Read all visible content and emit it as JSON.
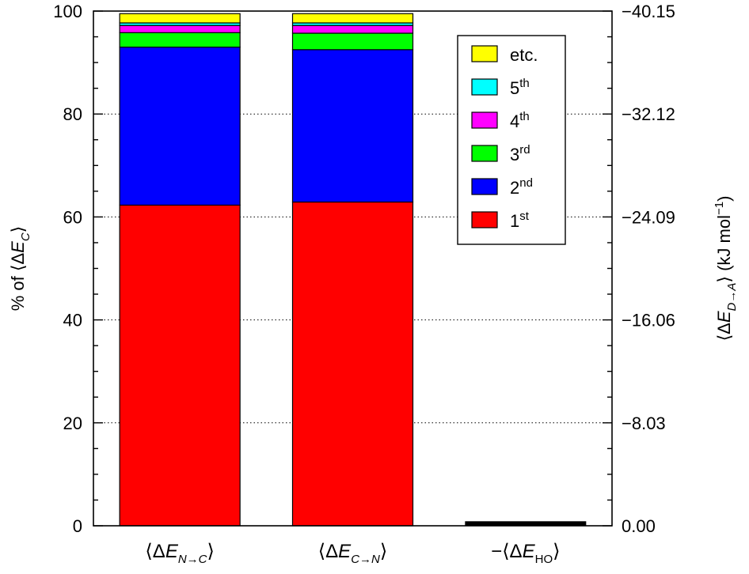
{
  "chart_data": {
    "type": "stacked-bar",
    "title": "",
    "categories": [
      "⟨ΔE_{N→C}⟩",
      "⟨ΔE_{C→N}⟩",
      "−⟨ΔE_{HO}⟩"
    ],
    "category_labels": [
      {
        "pre": "⟨Δ",
        "main": "E",
        "sub": "N→C",
        "post": "⟩"
      },
      {
        "pre": "⟨Δ",
        "main": "E",
        "sub": "C→N",
        "post": "⟩"
      },
      {
        "pre": "−⟨Δ",
        "main": "E",
        "sub": "HO",
        "post": "⟩"
      }
    ],
    "series": [
      {
        "name": "1st",
        "label_base": "1",
        "label_sup": "st",
        "color": "#ff0000",
        "values": [
          62.3,
          62.9,
          0
        ]
      },
      {
        "name": "2nd",
        "label_base": "2",
        "label_sup": "nd",
        "color": "#0000ff",
        "values": [
          30.7,
          29.6,
          0
        ]
      },
      {
        "name": "3rd",
        "label_base": "3",
        "label_sup": "rd",
        "color": "#00ff00",
        "values": [
          2.8,
          3.2,
          0
        ]
      },
      {
        "name": "4th",
        "label_base": "4",
        "label_sup": "th",
        "color": "#ff00ff",
        "values": [
          1.4,
          1.5,
          0
        ]
      },
      {
        "name": "5th",
        "label_base": "5",
        "label_sup": "th",
        "color": "#00ffff",
        "values": [
          0.5,
          0.5,
          0
        ]
      },
      {
        "name": "etc.",
        "label_base": "etc.",
        "label_sup": "",
        "color": "#ffff00",
        "values": [
          1.8,
          1.8,
          0
        ]
      }
    ],
    "extra_bars": [
      {
        "category_index": 2,
        "value": 0.8,
        "color": "#000000"
      }
    ],
    "y_left": {
      "label_pre": "% of ⟨Δ",
      "label_main": "E",
      "label_sub": "C",
      "label_post": "⟩",
      "ylim": [
        0,
        100
      ],
      "ticks": [
        0,
        20,
        40,
        60,
        80,
        100
      ],
      "tick_labels": [
        "0",
        "20",
        "40",
        "60",
        "80",
        "100"
      ]
    },
    "y_right": {
      "label_pre": "⟨Δ",
      "label_main": "E",
      "label_sub": "D→A",
      "label_post": "⟩ (kJ mol",
      "label_sup": "−1",
      "label_end": ")",
      "tick_labels": [
        "0.00",
        "−8.03",
        "−16.06",
        "−24.09",
        "−32.12",
        "−40.15"
      ]
    },
    "grid": "horizontal dotted at major ticks",
    "legend_position": "top-right",
    "legend_order": [
      5,
      4,
      3,
      2,
      1,
      0
    ]
  }
}
